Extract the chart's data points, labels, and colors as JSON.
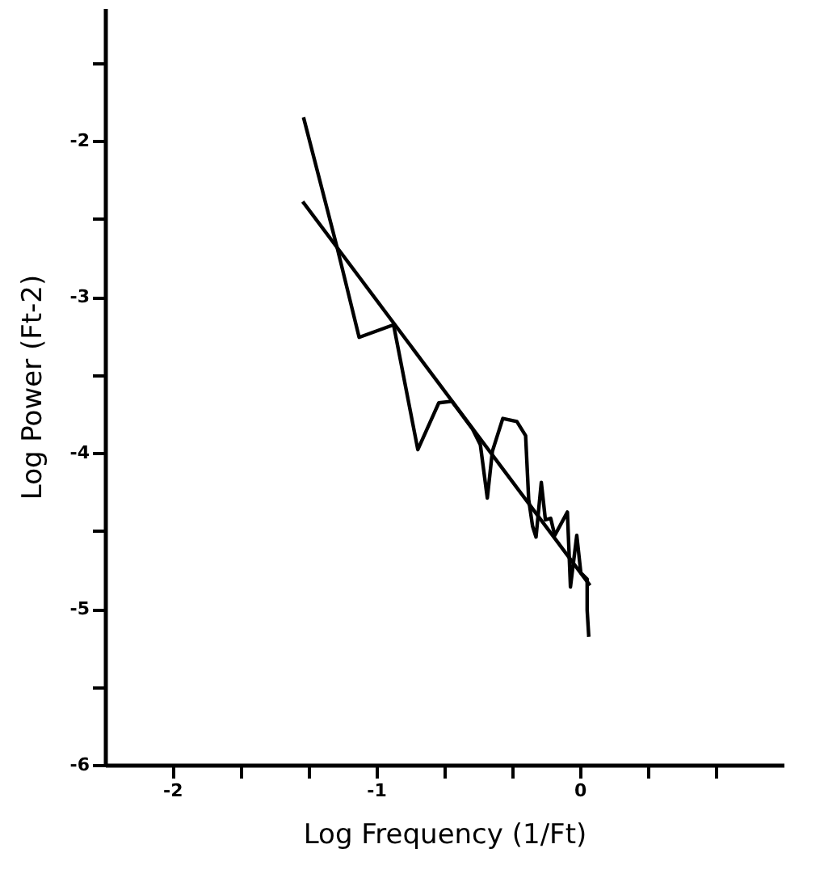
{
  "chart_data": {
    "type": "line",
    "xlabel": "Log Frequency (1/Ft)",
    "ylabel": "Log Power (Ft-2)",
    "xlim": [
      -2.33,
      1.0
    ],
    "ylim": [
      -6,
      -1.15
    ],
    "xticks": [
      -2,
      {
        "value": -1.667,
        "label": null
      },
      {
        "value": -1.333,
        "label": null
      },
      -1,
      {
        "value": -0.667,
        "label": null
      },
      {
        "value": -0.333,
        "label": null
      },
      0,
      {
        "value": 0.333,
        "label": null
      },
      {
        "value": 0.667,
        "label": null
      }
    ],
    "yticks": [
      -6,
      {
        "value": -5.5,
        "label": null
      },
      -5,
      {
        "value": -4.5,
        "label": null
      },
      -4,
      {
        "value": -3.5,
        "label": null
      },
      -3,
      {
        "value": -2.5,
        "label": null
      },
      -2,
      {
        "value": -1.5,
        "label": null
      }
    ],
    "grid": false,
    "marker": "none",
    "line_style": "solid",
    "series": [
      {
        "color": "#000000",
        "x": [
          -1.356,
          -1.19,
          -1.083,
          -0.914,
          -0.795,
          -0.692,
          -0.628,
          -0.565,
          -0.526,
          -0.488,
          -0.454,
          -0.429,
          -0.378,
          -0.309,
          -0.266,
          -0.251,
          -0.232,
          -0.215,
          -0.189,
          -0.169,
          -0.143,
          -0.123,
          -0.061,
          -0.046,
          -0.015,
          0.005,
          0.036,
          0.036,
          0.044
        ],
        "values": [
          -1.85,
          -2.69,
          -3.26,
          -3.18,
          -3.98,
          -3.68,
          -3.67,
          -3.78,
          -3.85,
          -3.95,
          -4.29,
          -3.99,
          -3.78,
          -3.8,
          -3.89,
          -4.3,
          -4.47,
          -4.54,
          -4.19,
          -4.43,
          -4.42,
          -4.53,
          -4.38,
          -4.86,
          -4.53,
          -4.77,
          -4.81,
          -5.01,
          -5.18
        ]
      },
      {
        "color": "#000000",
        "x": [
          -1.36,
          0.05
        ],
        "values": [
          -2.39,
          -4.85
        ]
      }
    ]
  }
}
